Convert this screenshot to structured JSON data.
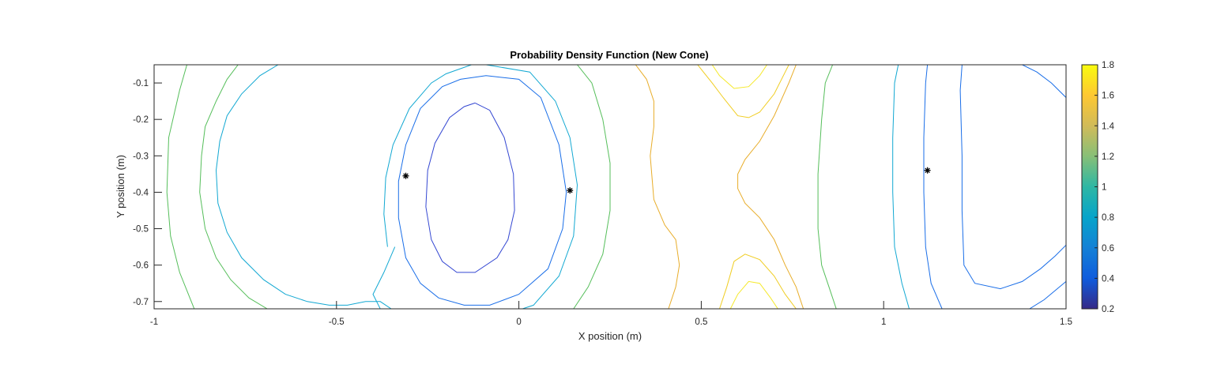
{
  "chart_data": {
    "type": "contour",
    "title": "Probability Density Function (New Cone)",
    "xlabel": "X position (m)",
    "ylabel": "Y position (m)",
    "xlim": [
      -1,
      1.5
    ],
    "ylim": [
      -0.72,
      -0.05
    ],
    "x_ticks": [
      -1,
      -0.5,
      0,
      0.5,
      1,
      1.5
    ],
    "x_tick_labels": [
      "-1",
      "-0.5",
      "0",
      "0.5",
      "1",
      "1.5"
    ],
    "y_ticks": [
      -0.1,
      -0.2,
      -0.3,
      -0.4,
      -0.5,
      -0.6,
      -0.7
    ],
    "y_tick_labels": [
      "-0.1",
      "-0.2",
      "-0.3",
      "-0.4",
      "-0.5",
      "-0.6",
      "-0.7"
    ],
    "colorbar": {
      "colormap": "parula",
      "range": [
        0.2,
        1.8
      ],
      "ticks": [
        0.2,
        0.4,
        0.6,
        0.8,
        1,
        1.2,
        1.4,
        1.6,
        1.8
      ],
      "tick_labels": [
        "0.2",
        "0.4",
        "0.6",
        "0.8",
        "1",
        "1.2",
        "1.4",
        "1.6",
        "1.8"
      ],
      "location": "right"
    },
    "levels": [
      {
        "level": 0.4,
        "color": "#3447d2",
        "paths": [
          [
            [
              -0.12,
              -0.155
            ],
            [
              -0.08,
              -0.175
            ],
            [
              -0.04,
              -0.25
            ],
            [
              -0.015,
              -0.35
            ],
            [
              -0.012,
              -0.45
            ],
            [
              -0.03,
              -0.53
            ],
            [
              -0.06,
              -0.58
            ],
            [
              -0.12,
              -0.62
            ],
            [
              -0.17,
              -0.62
            ],
            [
              -0.21,
              -0.59
            ],
            [
              -0.24,
              -0.53
            ],
            [
              -0.255,
              -0.44
            ],
            [
              -0.25,
              -0.34
            ],
            [
              -0.23,
              -0.265
            ],
            [
              -0.19,
              -0.195
            ],
            [
              -0.15,
              -0.165
            ],
            [
              -0.12,
              -0.155
            ]
          ]
        ]
      },
      {
        "level": 0.6,
        "color": "#1a6ee8",
        "paths": [
          [
            [
              -0.09,
              -0.08
            ],
            [
              0.0,
              -0.09
            ],
            [
              0.06,
              -0.14
            ],
            [
              0.11,
              -0.27
            ],
            [
              0.13,
              -0.4
            ],
            [
              0.12,
              -0.5
            ],
            [
              0.08,
              -0.61
            ],
            [
              0.0,
              -0.68
            ],
            [
              -0.08,
              -0.71
            ],
            [
              -0.15,
              -0.71
            ],
            [
              -0.22,
              -0.69
            ],
            [
              -0.27,
              -0.65
            ],
            [
              -0.31,
              -0.58
            ],
            [
              -0.33,
              -0.47
            ],
            [
              -0.33,
              -0.37
            ],
            [
              -0.31,
              -0.27
            ],
            [
              -0.27,
              -0.17
            ],
            [
              -0.21,
              -0.11
            ],
            [
              -0.16,
              -0.09
            ],
            [
              -0.09,
              -0.08
            ]
          ],
          [
            [
              1.12,
              -0.05
            ],
            [
              1.115,
              -0.1
            ],
            [
              1.11,
              -0.25
            ],
            [
              1.11,
              -0.4
            ],
            [
              1.115,
              -0.55
            ],
            [
              1.13,
              -0.65
            ],
            [
              1.16,
              -0.72
            ]
          ],
          [
            [
              1.215,
              -0.05
            ],
            [
              1.21,
              -0.12
            ],
            [
              1.215,
              -0.3
            ],
            [
              1.215,
              -0.45
            ],
            [
              1.22,
              -0.6
            ],
            [
              1.25,
              -0.65
            ],
            [
              1.32,
              -0.665
            ],
            [
              1.38,
              -0.645
            ],
            [
              1.43,
              -0.61
            ],
            [
              1.47,
              -0.575
            ],
            [
              1.5,
              -0.545
            ]
          ],
          [
            [
              1.38,
              -0.05
            ],
            [
              1.42,
              -0.07
            ],
            [
              1.46,
              -0.1
            ],
            [
              1.5,
              -0.14
            ]
          ],
          [
            [
              1.4,
              -0.72
            ],
            [
              1.44,
              -0.695
            ],
            [
              1.47,
              -0.67
            ],
            [
              1.5,
              -0.645
            ]
          ]
        ]
      },
      {
        "level": 0.8,
        "color": "#12a8d2",
        "paths": [
          [
            [
              -0.66,
              -0.05
            ],
            [
              -0.71,
              -0.08
            ],
            [
              -0.76,
              -0.13
            ],
            [
              -0.8,
              -0.19
            ],
            [
              -0.82,
              -0.26
            ],
            [
              -0.83,
              -0.34
            ],
            [
              -0.825,
              -0.43
            ],
            [
              -0.8,
              -0.51
            ],
            [
              -0.76,
              -0.58
            ],
            [
              -0.7,
              -0.64
            ],
            [
              -0.64,
              -0.68
            ],
            [
              -0.58,
              -0.7
            ],
            [
              -0.52,
              -0.71
            ],
            [
              -0.47,
              -0.71
            ],
            [
              -0.42,
              -0.7
            ],
            [
              -0.38,
              -0.7
            ],
            [
              -0.35,
              -0.72
            ]
          ],
          [
            [
              -0.09,
              -0.05
            ],
            [
              0.03,
              -0.07
            ],
            [
              0.1,
              -0.15
            ],
            [
              0.14,
              -0.25
            ],
            [
              0.16,
              -0.38
            ],
            [
              0.15,
              -0.52
            ],
            [
              0.11,
              -0.63
            ],
            [
              0.04,
              -0.71
            ],
            [
              0.01,
              -0.72
            ]
          ],
          [
            [
              -0.38,
              -0.72
            ],
            [
              -0.4,
              -0.68
            ],
            [
              -0.37,
              -0.62
            ],
            [
              -0.34,
              -0.55
            ]
          ],
          [
            [
              -0.36,
              -0.55
            ],
            [
              -0.37,
              -0.46
            ],
            [
              -0.365,
              -0.36
            ],
            [
              -0.345,
              -0.27
            ],
            [
              -0.3,
              -0.17
            ],
            [
              -0.24,
              -0.1
            ],
            [
              -0.2,
              -0.075
            ],
            [
              -0.13,
              -0.05
            ]
          ],
          [
            [
              1.04,
              -0.05
            ],
            [
              1.03,
              -0.1
            ],
            [
              1.025,
              -0.25
            ],
            [
              1.025,
              -0.4
            ],
            [
              1.03,
              -0.55
            ],
            [
              1.05,
              -0.65
            ],
            [
              1.07,
              -0.72
            ]
          ]
        ]
      },
      {
        "level": 1.2,
        "color": "#55be5a",
        "paths": [
          [
            [
              -0.91,
              -0.05
            ],
            [
              -0.93,
              -0.12
            ],
            [
              -0.96,
              -0.25
            ],
            [
              -0.965,
              -0.4
            ],
            [
              -0.955,
              -0.52
            ],
            [
              -0.93,
              -0.62
            ],
            [
              -0.89,
              -0.72
            ]
          ],
          [
            [
              -0.77,
              -0.05
            ],
            [
              -0.8,
              -0.09
            ],
            [
              -0.83,
              -0.15
            ],
            [
              -0.86,
              -0.22
            ],
            [
              -0.87,
              -0.3
            ],
            [
              -0.875,
              -0.4
            ],
            [
              -0.86,
              -0.5
            ],
            [
              -0.83,
              -0.58
            ],
            [
              -0.79,
              -0.64
            ],
            [
              -0.74,
              -0.69
            ],
            [
              -0.69,
              -0.72
            ]
          ],
          [
            [
              0.16,
              -0.05
            ],
            [
              0.2,
              -0.1
            ],
            [
              0.23,
              -0.2
            ],
            [
              0.25,
              -0.32
            ],
            [
              0.25,
              -0.45
            ],
            [
              0.23,
              -0.57
            ],
            [
              0.19,
              -0.66
            ],
            [
              0.15,
              -0.72
            ]
          ],
          [
            [
              0.86,
              -0.05
            ],
            [
              0.84,
              -0.1
            ],
            [
              0.83,
              -0.2
            ],
            [
              0.82,
              -0.35
            ],
            [
              0.82,
              -0.5
            ],
            [
              0.83,
              -0.6
            ],
            [
              0.85,
              -0.66
            ],
            [
              0.87,
              -0.72
            ]
          ]
        ]
      },
      {
        "level": 1.4,
        "color": "#e8ad2a",
        "paths": [
          [
            [
              0.32,
              -0.05
            ],
            [
              0.35,
              -0.09
            ],
            [
              0.37,
              -0.15
            ],
            [
              0.37,
              -0.22
            ],
            [
              0.36,
              -0.3
            ],
            [
              0.37,
              -0.42
            ],
            [
              0.4,
              -0.49
            ],
            [
              0.43,
              -0.53
            ],
            [
              0.44,
              -0.6
            ],
            [
              0.43,
              -0.66
            ],
            [
              0.41,
              -0.72
            ]
          ],
          [
            [
              0.76,
              -0.05
            ],
            [
              0.74,
              -0.1
            ],
            [
              0.7,
              -0.19
            ],
            [
              0.66,
              -0.26
            ],
            [
              0.62,
              -0.31
            ],
            [
              0.6,
              -0.35
            ],
            [
              0.6,
              -0.39
            ],
            [
              0.62,
              -0.43
            ],
            [
              0.66,
              -0.47
            ],
            [
              0.7,
              -0.53
            ],
            [
              0.73,
              -0.6
            ],
            [
              0.76,
              -0.66
            ],
            [
              0.78,
              -0.72
            ]
          ]
        ]
      },
      {
        "level": 1.6,
        "color": "#f0cd22",
        "paths": [
          [
            [
              0.49,
              -0.05
            ],
            [
              0.53,
              -0.1
            ],
            [
              0.56,
              -0.14
            ],
            [
              0.6,
              -0.19
            ],
            [
              0.63,
              -0.195
            ],
            [
              0.66,
              -0.18
            ],
            [
              0.7,
              -0.13
            ],
            [
              0.73,
              -0.07
            ],
            [
              0.74,
              -0.05
            ]
          ],
          [
            [
              0.55,
              -0.72
            ],
            [
              0.57,
              -0.66
            ],
            [
              0.59,
              -0.59
            ],
            [
              0.62,
              -0.57
            ],
            [
              0.66,
              -0.585
            ],
            [
              0.7,
              -0.63
            ],
            [
              0.73,
              -0.68
            ],
            [
              0.76,
              -0.72
            ]
          ]
        ]
      },
      {
        "level": 1.8,
        "color": "#f5e92a",
        "paths": [
          [
            [
              0.53,
              -0.05
            ],
            [
              0.55,
              -0.08
            ],
            [
              0.59,
              -0.115
            ],
            [
              0.63,
              -0.11
            ],
            [
              0.66,
              -0.08
            ],
            [
              0.68,
              -0.05
            ]
          ],
          [
            [
              0.58,
              -0.72
            ],
            [
              0.6,
              -0.68
            ],
            [
              0.63,
              -0.645
            ],
            [
              0.66,
              -0.65
            ],
            [
              0.69,
              -0.69
            ],
            [
              0.71,
              -0.72
            ]
          ]
        ]
      }
    ],
    "markers": [
      {
        "x": -0.31,
        "y": -0.355,
        "symbol": "*"
      },
      {
        "x": 0.14,
        "y": -0.395,
        "symbol": "*"
      },
      {
        "x": 1.12,
        "y": -0.34,
        "symbol": "*"
      }
    ]
  }
}
